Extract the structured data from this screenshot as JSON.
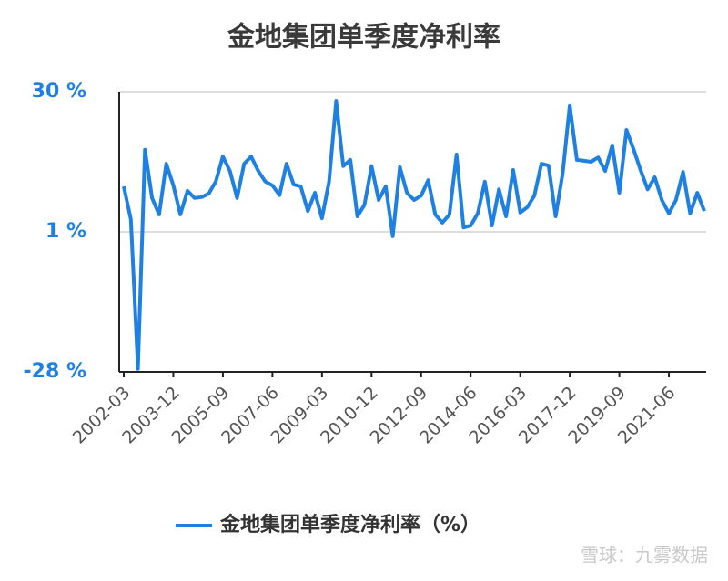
{
  "chart_data": {
    "type": "line",
    "title": "金地集团单季度净利率",
    "categories": [
      "2002-03",
      null,
      null,
      null,
      null,
      null,
      null,
      "2003-12",
      null,
      null,
      null,
      null,
      null,
      null,
      "2005-09",
      null,
      null,
      null,
      null,
      null,
      null,
      "2007-06",
      null,
      null,
      null,
      null,
      null,
      null,
      "2009-03",
      null,
      null,
      null,
      null,
      null,
      null,
      "2010-12",
      null,
      null,
      null,
      null,
      null,
      null,
      "2012-09",
      null,
      null,
      null,
      null,
      null,
      null,
      "2014-06",
      null,
      null,
      null,
      null,
      null,
      null,
      "2016-03",
      null,
      null,
      null,
      null,
      null,
      null,
      "2017-12",
      null,
      null,
      null,
      null,
      null,
      null,
      "2019-09",
      null,
      null,
      null,
      null,
      null,
      null,
      "2021-06",
      null,
      null,
      null,
      null,
      null
    ],
    "series": [
      {
        "name": "金地集团单季度净利率（%）",
        "color": "#1e80e2",
        "values": [
          10.4,
          3.6,
          -27.4,
          18,
          8,
          4.6,
          15.1,
          10.6,
          4.6,
          9.5,
          8,
          8.2,
          8.9,
          11.4,
          16.6,
          13.6,
          8,
          15.1,
          16.6,
          13.6,
          11.4,
          10.6,
          8.6,
          15.1,
          10.8,
          10.4,
          5.3,
          9.1,
          3.8,
          11.4,
          28.1,
          14.6,
          15.9,
          4.2,
          6.6,
          14.6,
          7.6,
          10.4,
          0.1,
          14.4,
          9.1,
          7.6,
          8.5,
          11.7,
          4.6,
          2.9,
          4.6,
          17,
          1.9,
          2.3,
          4.8,
          11.4,
          2.3,
          9.8,
          4.2,
          13.8,
          5,
          6.1,
          8.5,
          15.1,
          14.7,
          4.2,
          13.2,
          27.2,
          15.9,
          15.7,
          15.5,
          16.4,
          13.6,
          18.9,
          9.1,
          22.1,
          18.1,
          13.8,
          9.8,
          12.3,
          7.6,
          4.8,
          7.6,
          13.4,
          4.8,
          9.1,
          5.3
        ]
      }
    ],
    "ylim": [
      -28,
      30
    ],
    "yticks": [
      {
        "value": -28,
        "label": "-28 %"
      },
      {
        "value": 1,
        "label": "1 %"
      },
      {
        "value": 30,
        "label": "30 %"
      }
    ],
    "grid": true,
    "legend": "bottom",
    "watermark": "雪球：九雾数据"
  }
}
